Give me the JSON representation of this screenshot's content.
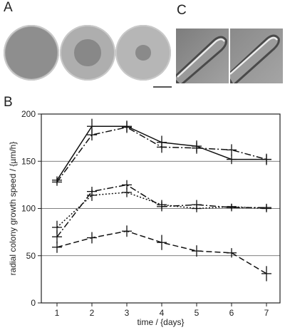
{
  "panels": {
    "a": "A",
    "b": "B",
    "c": "C"
  },
  "plates": [
    {
      "name": "plate-1",
      "outer": "#9c9c9c",
      "inner": "#8e8e8e",
      "colony_fraction": 1.0
    },
    {
      "name": "plate-2",
      "outer": "#aeaeae",
      "inner": "#888888",
      "colony_fraction": 0.52
    },
    {
      "name": "plate-3",
      "outer": "#b6b6b6",
      "inner": "#8a8a8a",
      "colony_fraction": 0.3
    }
  ],
  "chart_data": {
    "type": "line",
    "xlabel": "time / {days}",
    "ylabel": "radial colony growth speed / {µm/h}",
    "x": [
      1,
      2,
      3,
      4,
      5,
      6,
      7
    ],
    "xticks": [
      "1",
      "2",
      "3",
      "4",
      "5",
      "6",
      "7"
    ],
    "ylim": [
      0,
      200
    ],
    "yticks": [
      "0",
      "50",
      "100",
      "150",
      "200"
    ],
    "grid_y": [
      50,
      100,
      150
    ],
    "series": [
      {
        "style": "solid",
        "values": [
          130,
          187,
          187,
          170,
          166,
          152,
          152
        ],
        "err": [
          4,
          8,
          6,
          7,
          6,
          5,
          6
        ]
      },
      {
        "style": "dashdot",
        "values": [
          128,
          178,
          186,
          165,
          164,
          162,
          152
        ],
        "err": [
          4,
          6,
          6,
          6,
          6,
          6,
          5
        ]
      },
      {
        "style": "dashdot",
        "values": [
          70,
          118,
          125,
          102,
          104,
          101,
          101
        ],
        "err": [
          7,
          5,
          5,
          5,
          5,
          4,
          4
        ]
      },
      {
        "style": "dotted",
        "values": [
          80,
          114,
          117,
          104,
          100,
          102,
          100
        ],
        "err": [
          7,
          6,
          5,
          5,
          4,
          3,
          4
        ]
      },
      {
        "style": "dashed",
        "values": [
          59,
          69,
          76,
          64,
          55,
          53,
          31
        ],
        "err": [
          6,
          6,
          6,
          8,
          6,
          5,
          8
        ]
      }
    ]
  }
}
